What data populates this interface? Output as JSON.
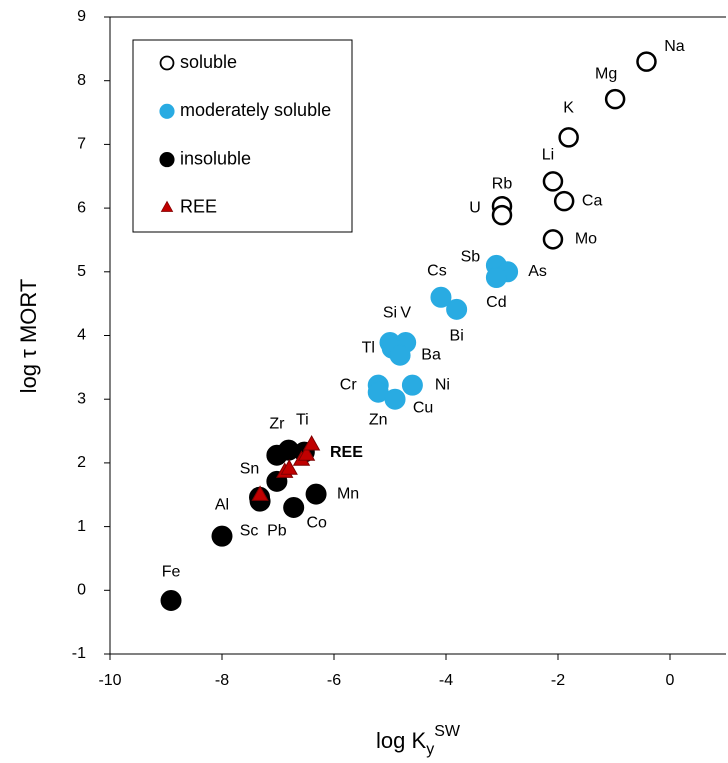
{
  "chart_data": {
    "type": "scatter",
    "ylabel": "log τ MORT",
    "xlabel_parts": [
      "log K",
      "y",
      "SW"
    ],
    "xlim": [
      -10,
      1
    ],
    "ylim": [
      -1,
      9
    ],
    "xticks": [
      -10,
      -8,
      -6,
      -4,
      -2,
      0
    ],
    "yticks": [
      -1,
      0,
      1,
      2,
      3,
      4,
      5,
      6,
      7,
      8,
      9
    ],
    "legend": "top-left",
    "series": [
      {
        "name": "soluble",
        "color": "#000000",
        "marker": "circle",
        "filled": false,
        "labels": [
          "Na",
          "Mg",
          "K",
          "Li",
          "Ca",
          "Rb",
          "U",
          "Mo"
        ],
        "x": [
          -0.42,
          -0.98,
          -1.81,
          -2.09,
          -1.89,
          -3.0,
          -3.0,
          -2.09
        ],
        "values": [
          8.3,
          7.71,
          7.11,
          6.42,
          6.11,
          6.03,
          5.89,
          5.51
        ]
      },
      {
        "name": "moderately soluble",
        "color": "#29abe2",
        "marker": "circle",
        "filled": true,
        "labels": [
          "Sb",
          "As",
          "Cd",
          "Cs",
          "Bi",
          "Si",
          "V",
          "Tl",
          "Ba",
          "Cr",
          "Zn",
          "Cu",
          "Ni"
        ],
        "x": [
          -3.1,
          -2.9,
          -3.1,
          -4.09,
          -3.81,
          -5.0,
          -4.72,
          -4.96,
          -4.82,
          -5.21,
          -5.21,
          -4.91,
          -4.6
        ],
        "values": [
          5.1,
          5.0,
          4.91,
          4.6,
          4.41,
          3.89,
          3.89,
          3.8,
          3.69,
          3.22,
          3.11,
          3.0,
          3.22
        ]
      },
      {
        "name": "insoluble",
        "color": "#000000",
        "marker": "circle",
        "filled": true,
        "labels": [
          "Fe",
          "Al",
          "Sc",
          "Sn",
          "Pb",
          "Co",
          "Mn",
          "Zr",
          null,
          "Ti"
        ],
        "x": [
          -8.91,
          -8.0,
          -7.32,
          -7.33,
          -7.02,
          -6.72,
          -6.32,
          -7.02,
          -6.81,
          -6.53
        ],
        "values": [
          -0.16,
          0.85,
          1.4,
          1.46,
          1.71,
          1.3,
          1.51,
          2.12,
          2.2,
          2.17
        ]
      },
      {
        "name": "REE",
        "color": "#c00000",
        "marker": "triangle",
        "filled": true,
        "x": [
          -7.32,
          -6.88,
          -6.8,
          -6.58,
          -6.49,
          -6.4
        ],
        "values": [
          1.49,
          1.85,
          1.9,
          2.04,
          2.12,
          2.28
        ]
      }
    ],
    "annotations": [
      {
        "text": "REE",
        "color": "#c0392b"
      }
    ]
  }
}
